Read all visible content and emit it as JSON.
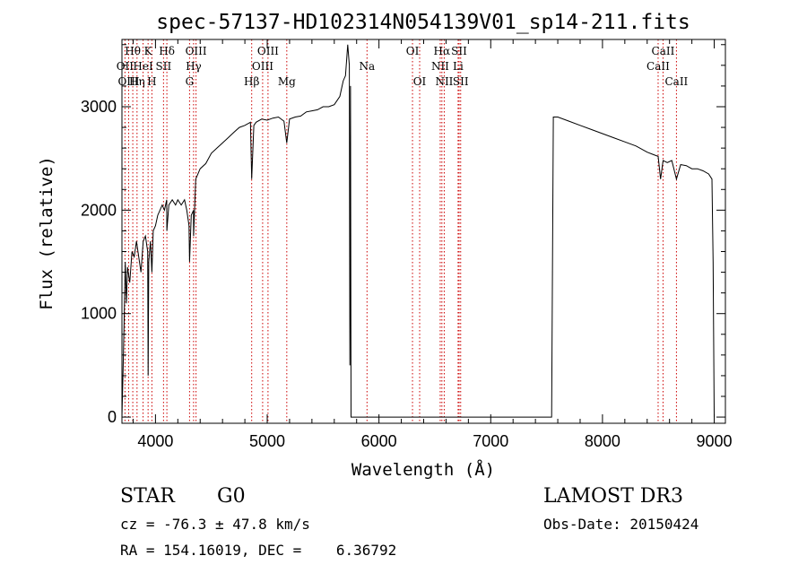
{
  "chart_data": {
    "type": "line",
    "title": "spec-57137-HD102314N054139V01_sp14-211.fits",
    "xlabel": "Wavelength (Å)",
    "ylabel": "Flux (relative)",
    "xlim": [
      3700,
      9100
    ],
    "ylim": [
      -60,
      3650
    ],
    "x_ticks": [
      4000,
      5000,
      6000,
      7000,
      8000,
      9000
    ],
    "y_ticks": [
      0,
      1000,
      2000,
      3000
    ],
    "series": [
      {
        "name": "spectrum",
        "x": [
          3700,
          3710,
          3720,
          3730,
          3740,
          3750,
          3770,
          3790,
          3810,
          3830,
          3850,
          3870,
          3890,
          3910,
          3930,
          3934,
          3940,
          3955,
          3968,
          3980,
          4000,
          4020,
          4040,
          4060,
          4080,
          4100,
          4102,
          4120,
          4150,
          4180,
          4200,
          4230,
          4260,
          4280,
          4300,
          4305,
          4320,
          4340,
          4341,
          4360,
          4400,
          4450,
          4500,
          4550,
          4600,
          4650,
          4700,
          4750,
          4800,
          4850,
          4861,
          4880,
          4900,
          4950,
          5000,
          5050,
          5100,
          5150,
          5175,
          5200,
          5250,
          5300,
          5350,
          5400,
          5450,
          5500,
          5550,
          5600,
          5650,
          5680,
          5700,
          5720,
          5735,
          5740,
          5745,
          5750,
          5800,
          6000,
          6500,
          7000,
          7300,
          7500,
          7545,
          7560,
          7600,
          7700,
          7800,
          7900,
          8000,
          8100,
          8200,
          8300,
          8400,
          8450,
          8498,
          8520,
          8542,
          8580,
          8620,
          8662,
          8700,
          8750,
          8800,
          8850,
          8900,
          8950,
          8980,
          8990,
          9000
        ],
        "values": [
          0,
          430,
          950,
          1500,
          1100,
          1450,
          1300,
          1600,
          1550,
          1700,
          1550,
          1400,
          1700,
          1750,
          1600,
          400,
          1500,
          1700,
          1400,
          1800,
          1850,
          1950,
          2000,
          2050,
          2000,
          2100,
          1800,
          2050,
          2100,
          2050,
          2100,
          2050,
          2100,
          2000,
          1850,
          1500,
          1950,
          2000,
          1750,
          2300,
          2400,
          2450,
          2550,
          2600,
          2650,
          2700,
          2750,
          2800,
          2820,
          2850,
          2300,
          2820,
          2850,
          2880,
          2870,
          2890,
          2900,
          2860,
          2650,
          2880,
          2900,
          2910,
          2950,
          2960,
          2970,
          3000,
          3000,
          3020,
          3100,
          3250,
          3300,
          3600,
          3400,
          500,
          3200,
          0,
          0,
          0,
          0,
          0,
          0,
          0,
          0,
          2900,
          2900,
          2860,
          2820,
          2780,
          2740,
          2700,
          2660,
          2620,
          2560,
          2540,
          2520,
          2300,
          2480,
          2460,
          2480,
          2300,
          2440,
          2430,
          2400,
          2400,
          2380,
          2350,
          2300,
          1500,
          0
        ]
      }
    ],
    "spectral_lines": [
      {
        "name": "Hθ",
        "x": 3797,
        "row": 1
      },
      {
        "name": "K",
        "x": 3934,
        "row": 1
      },
      {
        "name": "Hδ",
        "x": 4102,
        "row": 1
      },
      {
        "name": "OIII",
        "x": 4363,
        "row": 1
      },
      {
        "name": "OIII",
        "x": 5007,
        "row": 1
      },
      {
        "name": "OI",
        "x": 6300,
        "row": 1
      },
      {
        "name": "Hα",
        "x": 6563,
        "row": 1
      },
      {
        "name": "SII",
        "x": 6717,
        "row": 1
      },
      {
        "name": "CaII",
        "x": 8542,
        "row": 1
      },
      {
        "name": "OII",
        "x": 3727,
        "row": 2
      },
      {
        "name": "HeI",
        "x": 3889,
        "row": 2
      },
      {
        "name": "SII",
        "x": 4072,
        "row": 2
      },
      {
        "name": "Hγ",
        "x": 4341,
        "row": 2
      },
      {
        "name": "OIII",
        "x": 4959,
        "row": 2
      },
      {
        "name": "Na",
        "x": 5893,
        "row": 2
      },
      {
        "name": "NII",
        "x": 6548,
        "row": 2
      },
      {
        "name": "Li",
        "x": 6708,
        "row": 2
      },
      {
        "name": "CaII",
        "x": 8498,
        "row": 2
      },
      {
        "name": "OIII",
        "x": 3760,
        "row": 3
      },
      {
        "name": "Hη",
        "x": 3835,
        "row": 3
      },
      {
        "name": "H",
        "x": 3968,
        "row": 3
      },
      {
        "name": "G",
        "x": 4305,
        "row": 3
      },
      {
        "name": "Hβ",
        "x": 4861,
        "row": 3
      },
      {
        "name": "Mg",
        "x": 5175,
        "row": 3
      },
      {
        "name": "OI",
        "x": 6364,
        "row": 3
      },
      {
        "name": "NII",
        "x": 6584,
        "row": 3
      },
      {
        "name": "SII",
        "x": 6731,
        "row": 3
      },
      {
        "name": "CaII",
        "x": 8662,
        "row": 3
      }
    ],
    "line_color": "#cc0000",
    "data_color": "#000000"
  },
  "info": {
    "object_class": "STAR",
    "subclass": "G0",
    "survey": "LAMOST DR3",
    "redshift": "cz = -76.3 ± 47.8 km/s",
    "obs_date": "Obs-Date: 20150424",
    "coords": "RA = 154.16019, DEC =    6.36792"
  }
}
